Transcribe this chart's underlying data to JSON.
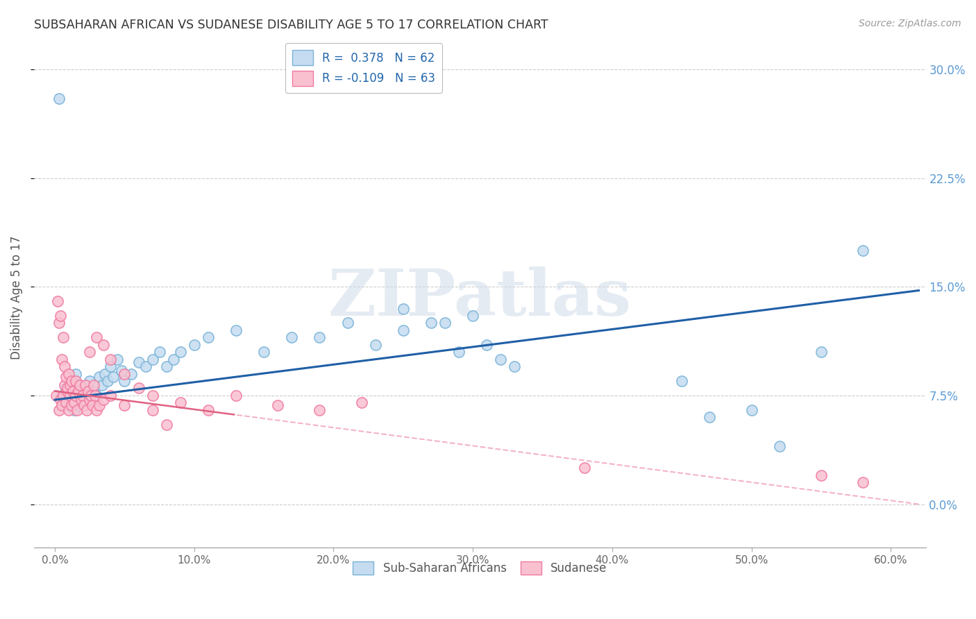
{
  "title": "SUBSAHARAN AFRICAN VS SUDANESE DISABILITY AGE 5 TO 17 CORRELATION CHART",
  "source": "Source: ZipAtlas.com",
  "ylabel": "Disability Age 5 to 17",
  "ytick_labels": [
    "0.0%",
    "7.5%",
    "15.0%",
    "22.5%",
    "30.0%"
  ],
  "ytick_values": [
    0.0,
    0.075,
    0.15,
    0.225,
    0.3
  ],
  "xtick_values": [
    0.0,
    0.1,
    0.2,
    0.3,
    0.4,
    0.5,
    0.6
  ],
  "xlim": [
    -0.015,
    0.625
  ],
  "ylim": [
    -0.03,
    0.315
  ],
  "blue_color": "#7ab3d8",
  "blue_fill": "#c5dcf0",
  "pink_color": "#f07aa0",
  "pink_fill": "#f9c0d0",
  "trend_blue": "#1f5fa6",
  "trend_pink_solid": "#e06080",
  "trend_pink_dash": "#f0a0b8",
  "R_blue": 0.378,
  "N_blue": 62,
  "R_pink": -0.109,
  "N_pink": 63,
  "legend_labels": [
    "Sub-Saharan Africans",
    "Sudanese"
  ],
  "watermark": "ZIPatlas",
  "blue_points_x": [
    0.003,
    0.005,
    0.007,
    0.008,
    0.009,
    0.01,
    0.011,
    0.012,
    0.013,
    0.014,
    0.015,
    0.016,
    0.017,
    0.018,
    0.019,
    0.02,
    0.022,
    0.024,
    0.025,
    0.027,
    0.028,
    0.03,
    0.032,
    0.034,
    0.036,
    0.038,
    0.04,
    0.042,
    0.045,
    0.048,
    0.05,
    0.055,
    0.06,
    0.065,
    0.07,
    0.075,
    0.08,
    0.085,
    0.09,
    0.1,
    0.11,
    0.13,
    0.15,
    0.17,
    0.19,
    0.21,
    0.23,
    0.25,
    0.27,
    0.29,
    0.31,
    0.33,
    0.25,
    0.28,
    0.3,
    0.32,
    0.45,
    0.47,
    0.5,
    0.52,
    0.55,
    0.58
  ],
  "blue_points_y": [
    0.28,
    0.075,
    0.072,
    0.08,
    0.068,
    0.075,
    0.082,
    0.07,
    0.078,
    0.065,
    0.09,
    0.075,
    0.068,
    0.082,
    0.072,
    0.078,
    0.075,
    0.08,
    0.085,
    0.072,
    0.078,
    0.075,
    0.088,
    0.082,
    0.09,
    0.085,
    0.095,
    0.088,
    0.1,
    0.092,
    0.085,
    0.09,
    0.098,
    0.095,
    0.1,
    0.105,
    0.095,
    0.1,
    0.105,
    0.11,
    0.115,
    0.12,
    0.105,
    0.115,
    0.115,
    0.125,
    0.11,
    0.12,
    0.125,
    0.105,
    0.11,
    0.095,
    0.135,
    0.125,
    0.13,
    0.1,
    0.085,
    0.06,
    0.065,
    0.04,
    0.105,
    0.175
  ],
  "pink_points_x": [
    0.001,
    0.002,
    0.003,
    0.003,
    0.004,
    0.004,
    0.005,
    0.005,
    0.006,
    0.006,
    0.007,
    0.007,
    0.008,
    0.008,
    0.009,
    0.009,
    0.01,
    0.01,
    0.011,
    0.011,
    0.012,
    0.012,
    0.013,
    0.014,
    0.015,
    0.015,
    0.016,
    0.017,
    0.018,
    0.019,
    0.02,
    0.021,
    0.022,
    0.023,
    0.024,
    0.025,
    0.026,
    0.027,
    0.028,
    0.029,
    0.03,
    0.032,
    0.035,
    0.04,
    0.05,
    0.07,
    0.09,
    0.11,
    0.13,
    0.16,
    0.19,
    0.22,
    0.025,
    0.03,
    0.035,
    0.04,
    0.05,
    0.06,
    0.07,
    0.08,
    0.38,
    0.55,
    0.58
  ],
  "pink_points_y": [
    0.075,
    0.14,
    0.065,
    0.125,
    0.072,
    0.13,
    0.068,
    0.1,
    0.075,
    0.115,
    0.082,
    0.095,
    0.07,
    0.088,
    0.078,
    0.08,
    0.065,
    0.09,
    0.082,
    0.075,
    0.068,
    0.085,
    0.078,
    0.07,
    0.075,
    0.085,
    0.065,
    0.078,
    0.082,
    0.072,
    0.075,
    0.068,
    0.082,
    0.065,
    0.078,
    0.072,
    0.075,
    0.068,
    0.082,
    0.075,
    0.065,
    0.068,
    0.072,
    0.075,
    0.068,
    0.075,
    0.07,
    0.065,
    0.075,
    0.068,
    0.065,
    0.07,
    0.105,
    0.115,
    0.11,
    0.1,
    0.09,
    0.08,
    0.065,
    0.055,
    0.025,
    0.02,
    0.015
  ]
}
